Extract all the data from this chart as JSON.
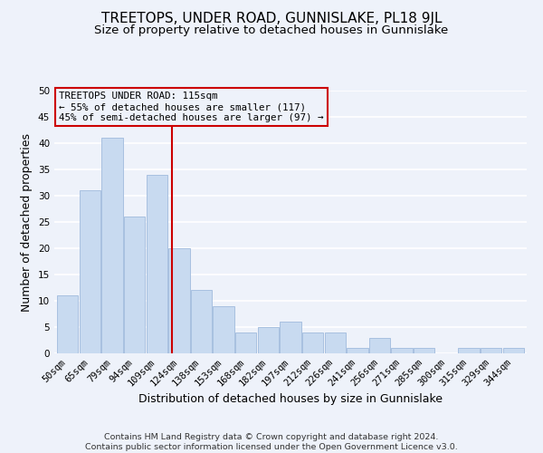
{
  "title": "TREETOPS, UNDER ROAD, GUNNISLAKE, PL18 9JL",
  "subtitle": "Size of property relative to detached houses in Gunnislake",
  "xlabel": "Distribution of detached houses by size in Gunnislake",
  "ylabel": "Number of detached properties",
  "footer_line1": "Contains HM Land Registry data © Crown copyright and database right 2024.",
  "footer_line2": "Contains public sector information licensed under the Open Government Licence v3.0.",
  "bins": [
    "50sqm",
    "65sqm",
    "79sqm",
    "94sqm",
    "109sqm",
    "124sqm",
    "138sqm",
    "153sqm",
    "168sqm",
    "182sqm",
    "197sqm",
    "212sqm",
    "226sqm",
    "241sqm",
    "256sqm",
    "271sqm",
    "285sqm",
    "300sqm",
    "315sqm",
    "329sqm",
    "344sqm"
  ],
  "values": [
    11,
    31,
    41,
    26,
    34,
    20,
    12,
    9,
    4,
    5,
    6,
    4,
    4,
    1,
    3,
    1,
    1,
    0,
    1,
    1,
    1
  ],
  "ylim": [
    0,
    50
  ],
  "yticks": [
    0,
    5,
    10,
    15,
    20,
    25,
    30,
    35,
    40,
    45,
    50
  ],
  "bar_color": "#c8daf0",
  "bar_edge_color": "#a8c0e0",
  "vline_x_index": 4.67,
  "vline_color": "#cc0000",
  "annotation_title": "TREETOPS UNDER ROAD: 115sqm",
  "annotation_line2": "← 55% of detached houses are smaller (117)",
  "annotation_line3": "45% of semi-detached houses are larger (97) →",
  "annotation_box_edge": "#cc0000",
  "background_color": "#eef2fa",
  "grid_color": "#ffffff",
  "title_fontsize": 11,
  "subtitle_fontsize": 9.5,
  "label_fontsize": 9,
  "tick_fontsize": 7.5,
  "footer_fontsize": 6.8
}
